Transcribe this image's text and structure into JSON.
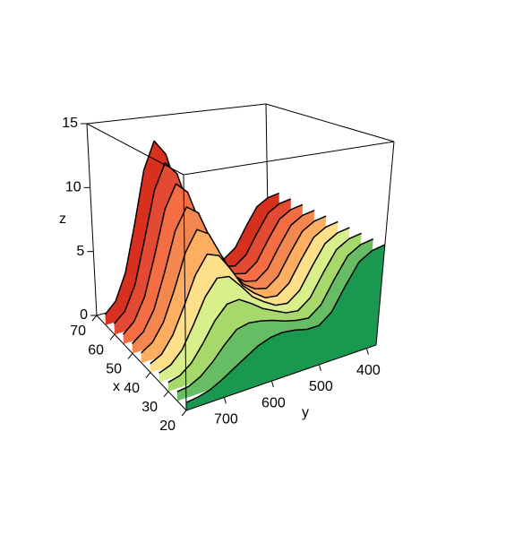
{
  "chart_data": {
    "type": "ribbon3d",
    "x_label": "x",
    "y_label": "y",
    "z_label": "z",
    "xlim": [
      20,
      70
    ],
    "ylim": [
      380,
      780
    ],
    "zlim": [
      0,
      15
    ],
    "xticks": [
      20,
      30,
      40,
      50,
      60,
      70
    ],
    "yticks": [
      400,
      500,
      600,
      700
    ],
    "zticks": [
      0,
      5,
      10,
      15
    ],
    "y": [
      380,
      405,
      430,
      455,
      480,
      505,
      530,
      555,
      580,
      605,
      630,
      655,
      680,
      705,
      730,
      755,
      780
    ],
    "series": [
      {
        "x": 20,
        "color": "#1a9850",
        "values": [
          7.4,
          7.2,
          6.6,
          5.1,
          3.5,
          2.8,
          2.8,
          3.0,
          3.1,
          3.0,
          2.7,
          2.2,
          1.7,
          1.2,
          0.8,
          0.6,
          0.5
        ]
      },
      {
        "x": 25,
        "color": "#66bd63",
        "values": [
          7.4,
          7.2,
          6.6,
          5.1,
          3.5,
          2.8,
          2.9,
          3.1,
          3.4,
          3.6,
          3.7,
          3.5,
          2.7,
          1.8,
          1.1,
          0.7,
          0.6
        ]
      },
      {
        "x": 30,
        "color": "#a6d96a",
        "values": [
          7.4,
          7.2,
          6.6,
          5.1,
          3.5,
          2.8,
          2.9,
          3.3,
          3.7,
          4.3,
          4.8,
          4.7,
          3.8,
          2.5,
          1.4,
          0.8,
          0.6
        ]
      },
      {
        "x": 35,
        "color": "#d9ef8b",
        "values": [
          7.4,
          7.2,
          6.6,
          5.1,
          3.5,
          2.8,
          2.9,
          3.4,
          4.0,
          5.0,
          5.9,
          6.0,
          4.9,
          3.2,
          1.7,
          0.9,
          0.6
        ]
      },
      {
        "x": 40,
        "color": "#fee08b",
        "values": [
          7.4,
          7.2,
          6.6,
          5.1,
          3.5,
          2.8,
          2.9,
          3.5,
          4.3,
          5.7,
          6.9,
          7.2,
          5.9,
          3.9,
          2.1,
          1.0,
          0.6
        ]
      },
      {
        "x": 45,
        "color": "#fdae61",
        "values": [
          7.4,
          7.2,
          6.6,
          5.1,
          3.5,
          2.8,
          3.0,
          3.6,
          4.7,
          6.3,
          8.0,
          8.5,
          7.0,
          4.5,
          2.4,
          1.2,
          0.7
        ]
      },
      {
        "x": 50,
        "color": "#f4874f",
        "values": [
          7.4,
          7.2,
          6.6,
          5.1,
          3.5,
          2.8,
          3.0,
          3.7,
          5.0,
          7.0,
          9.1,
          9.7,
          8.1,
          5.2,
          2.7,
          1.3,
          0.7
        ]
      },
      {
        "x": 55,
        "color": "#f46d43",
        "values": [
          7.4,
          7.2,
          6.6,
          5.1,
          3.5,
          2.8,
          3.0,
          3.8,
          5.3,
          7.7,
          10.2,
          11.0,
          9.2,
          5.9,
          3.0,
          1.4,
          0.7
        ]
      },
      {
        "x": 60,
        "color": "#e34a33",
        "values": [
          7.4,
          7.2,
          6.6,
          5.1,
          3.5,
          2.8,
          3.0,
          3.9,
          5.6,
          8.4,
          11.2,
          12.2,
          10.2,
          6.6,
          3.3,
          1.5,
          0.8
        ]
      },
      {
        "x": 65,
        "color": "#d7301f",
        "values": [
          7.4,
          7.2,
          6.6,
          5.1,
          3.5,
          2.8,
          3.1,
          4.0,
          5.9,
          9.0,
          12.3,
          13.5,
          11.3,
          7.2,
          3.6,
          1.6,
          0.8
        ]
      }
    ]
  }
}
